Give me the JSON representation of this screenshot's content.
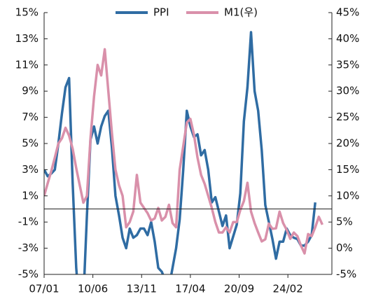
{
  "chart_data": {
    "type": "line",
    "x": [
      "07/01",
      "07/04",
      "07/07",
      "07/10",
      "08/01",
      "08/04",
      "08/07",
      "08/10",
      "09/01",
      "09/04",
      "09/07",
      "09/10",
      "10/01",
      "10/04",
      "10/07",
      "10/10",
      "11/01",
      "11/04",
      "11/07",
      "11/10",
      "12/01",
      "12/04",
      "12/07",
      "12/10",
      "13/01",
      "13/04",
      "13/07",
      "13/10",
      "14/01",
      "14/04",
      "14/07",
      "14/10",
      "15/01",
      "15/04",
      "15/07",
      "15/10",
      "16/01",
      "16/04",
      "16/07",
      "16/10",
      "17/01",
      "17/04",
      "17/07",
      "17/10",
      "18/01",
      "18/04",
      "18/07",
      "18/10",
      "19/01",
      "19/04",
      "19/07",
      "19/10",
      "20/01",
      "20/04",
      "20/07",
      "20/10",
      "21/01",
      "21/04",
      "21/07",
      "21/10",
      "22/01",
      "22/04",
      "22/07",
      "22/10",
      "23/01",
      "23/04",
      "23/07",
      "23/10",
      "24/01",
      "24/04",
      "24/07",
      "24/10",
      "25/01",
      "25/04",
      "25/07",
      "25/10",
      "26/01",
      "26/04",
      "26/07"
    ],
    "xlim": [
      "07/01",
      "27/03"
    ],
    "xticks": [
      "07/01",
      "10/06",
      "13/11",
      "17/04",
      "20/09",
      "24/02"
    ],
    "ylim": [
      -5,
      15
    ],
    "yticks": [
      {
        "value": -5,
        "label": "-5%"
      },
      {
        "value": -3,
        "label": "-3%"
      },
      {
        "value": -1,
        "label": "-1%"
      },
      {
        "value": 1,
        "label": "1%"
      },
      {
        "value": 3,
        "label": "3%"
      },
      {
        "value": 5,
        "label": "5%"
      },
      {
        "value": 7,
        "label": "7%"
      },
      {
        "value": 9,
        "label": "9%"
      },
      {
        "value": 11,
        "label": "11%"
      },
      {
        "value": 13,
        "label": "13%"
      },
      {
        "value": 15,
        "label": "15%"
      }
    ],
    "y2lim": [
      -5,
      45
    ],
    "y2ticks": [
      {
        "value": -5,
        "label": "-5%"
      },
      {
        "value": 0,
        "label": "0%"
      },
      {
        "value": 5,
        "label": "5%"
      },
      {
        "value": 10,
        "label": "10%"
      },
      {
        "value": 15,
        "label": "15%"
      },
      {
        "value": 20,
        "label": "20%"
      },
      {
        "value": 25,
        "label": "25%"
      },
      {
        "value": 30,
        "label": "30%"
      },
      {
        "value": 35,
        "label": "35%"
      },
      {
        "value": 40,
        "label": "40%"
      },
      {
        "value": 45,
        "label": "45%"
      }
    ],
    "series": [
      {
        "name": "PPI",
        "color": "#2f6ca3",
        "values": [
          3,
          2.5,
          2.7,
          3,
          5,
          7.3,
          9.3,
          10,
          2,
          -4.5,
          -8,
          -7,
          -0.5,
          5.3,
          6.3,
          5,
          6.3,
          7.1,
          7.5,
          4.7,
          1,
          -0.5,
          -2.2,
          -3,
          -1.5,
          -2.2,
          -2,
          -1.5,
          -1.5,
          -2,
          -1,
          -2.5,
          -4.5,
          -4.8,
          -5.5,
          -6,
          -4.5,
          -3,
          -0.8,
          3,
          7.5,
          6.3,
          5.5,
          5.7,
          4.1,
          4.5,
          3,
          0.5,
          0.9,
          -0.2,
          -1.3,
          -0.5,
          -3,
          -2.1,
          -1.2,
          1.2,
          6.7,
          9.3,
          13.5,
          9,
          7.5,
          4.5,
          0.3,
          -1,
          -2.3,
          -3.8,
          -2.5,
          -2.5,
          -1.5,
          -2,
          -2.2,
          -2.3,
          -2.8,
          -2.8,
          -2.5,
          -2,
          0.5,
          null,
          null
        ]
      },
      {
        "name": "M1(우)",
        "color": "#d990aa",
        "axis": "y2",
        "values": [
          10,
          12.4,
          14.7,
          17.3,
          20,
          21,
          23,
          21.5,
          19,
          15.3,
          12,
          8.7,
          10,
          21,
          29,
          35,
          33,
          38,
          30,
          22,
          15,
          12,
          10,
          4,
          5,
          7,
          14,
          8.7,
          7.7,
          6.7,
          5.3,
          5.7,
          7.7,
          5.3,
          6,
          8.3,
          4.8,
          4,
          15,
          19.5,
          24,
          24.7,
          21.7,
          17.3,
          14,
          12.3,
          10,
          7.7,
          5,
          3,
          3,
          4,
          3,
          5,
          5,
          7.3,
          9,
          12.5,
          7,
          4.8,
          3,
          1.3,
          1.7,
          4.7,
          3.7,
          3.8,
          7,
          4.8,
          3.5,
          1.8,
          3,
          2.3,
          0.5,
          -1,
          2.7,
          2.3,
          4,
          6,
          4.5
        ]
      }
    ]
  }
}
